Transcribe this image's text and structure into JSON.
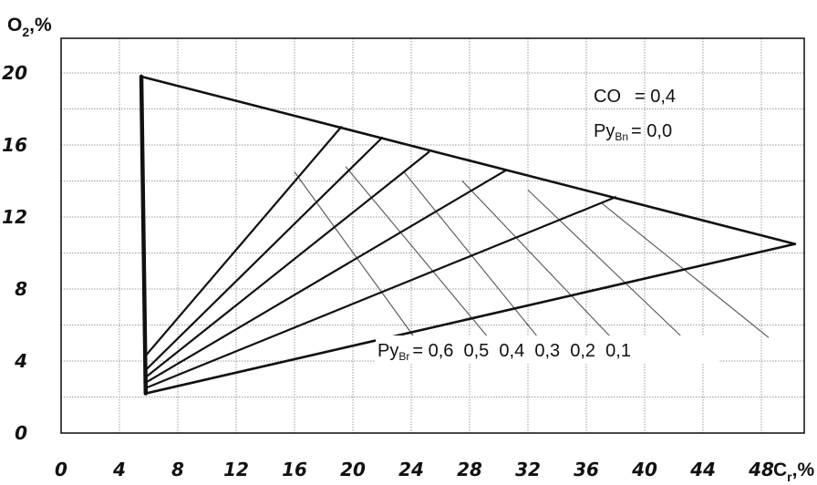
{
  "chart_data": {
    "type": "line",
    "title": "",
    "xlabel": "Cr,%",
    "ylabel": "O2,%",
    "xlim": [
      0,
      52
    ],
    "ylim": [
      0,
      22
    ],
    "grid": true,
    "x_ticks": [
      "0",
      "4",
      "8",
      "12",
      "16",
      "20",
      "24",
      "28",
      "32",
      "36",
      "40",
      "44",
      "48"
    ],
    "y_ticks": [
      "0",
      "4",
      "8",
      "12",
      "16",
      "20"
    ],
    "boundary": [
      [
        5.5,
        19.8
      ],
      [
        50.3,
        10.5
      ],
      [
        5.8,
        2.2
      ],
      [
        5.5,
        19.8
      ]
    ],
    "rays": [
      {
        "x": [
          5.8,
          19.2
        ],
        "y": [
          4.3,
          17.0
        ]
      },
      {
        "x": [
          5.8,
          22.0
        ],
        "y": [
          3.5,
          16.4
        ]
      },
      {
        "x": [
          5.8,
          25.2
        ],
        "y": [
          3.1,
          15.6
        ]
      },
      {
        "x": [
          5.8,
          30.5
        ],
        "y": [
          2.8,
          14.6
        ]
      },
      {
        "x": [
          5.8,
          38.0
        ],
        "y": [
          2.5,
          13.1
        ]
      }
    ],
    "iso_lines": [
      {
        "label": "0,6",
        "x": [
          16.0,
          24.5
        ],
        "y": [
          14.5,
          5.0
        ]
      },
      {
        "label": "0,5",
        "x": [
          19.5,
          30.0
        ],
        "y": [
          14.8,
          4.6
        ]
      },
      {
        "label": "0,4",
        "x": [
          23.5,
          33.5
        ],
        "y": [
          14.5,
          4.5
        ]
      },
      {
        "label": "0,3",
        "x": [
          27.5,
          39.0
        ],
        "y": [
          14.0,
          4.2
        ]
      },
      {
        "label": "0,2",
        "x": [
          32.0,
          43.5
        ],
        "y": [
          13.5,
          4.6
        ]
      },
      {
        "label": "0,1",
        "x": [
          37.0,
          48.5
        ],
        "y": [
          12.8,
          5.3
        ]
      }
    ]
  },
  "axes": {
    "y_title_main": "O",
    "y_title_sub": "2",
    "y_title_unit": ",%",
    "x_title_main": "C",
    "x_title_sub": "r",
    "x_title_unit": ",%"
  },
  "annotations": {
    "co_label": "CO",
    "co_value": "= 0,4",
    "pyv_n_main": "Py",
    "pyv_n_sub": "Вn",
    "pyv_n_value": "= 0,0",
    "pyv_r_main": "Py",
    "pyv_r_sub": "Вr",
    "pyv_r_values": "= 0,6  0,5  0,4  0,3  0,2  0,1"
  }
}
